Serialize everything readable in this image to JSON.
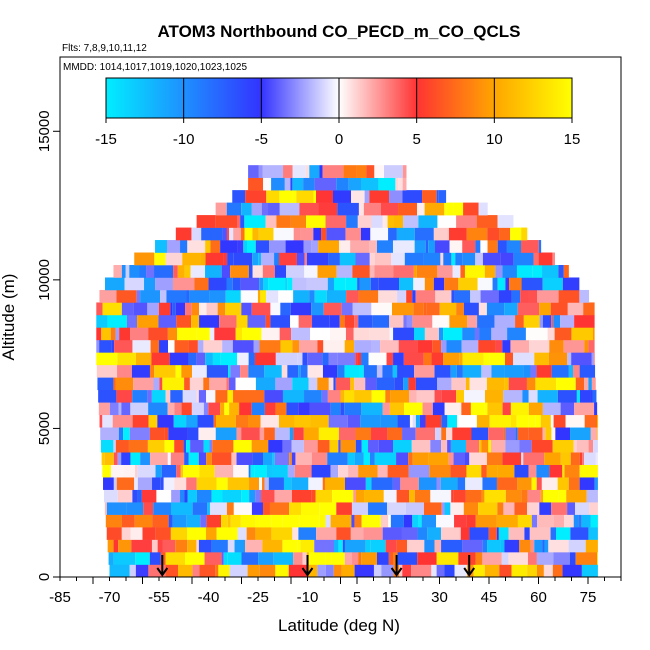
{
  "chart_data": {
    "type": "heatmap",
    "title": "ATOM3 Northbound CO_PECD_m_CO_QCLS",
    "subtitle_flights": "Flts: 7,8,9,10,11,12",
    "subtitle_dates": "MMDD: 1014,1017,1019,1020,1023,1025",
    "xlabel": "Latitude (deg N)",
    "ylabel": "Altitude (m)",
    "xlim": [
      -85,
      85
    ],
    "ylim": [
      0,
      17500
    ],
    "x_ticks": [
      "-85",
      "-70",
      "-55",
      "-40",
      "-25",
      "-10",
      "5",
      "15",
      "30",
      "45",
      "60",
      "75"
    ],
    "x_tick_values": [
      -85,
      -70,
      -55,
      -40,
      -25,
      -10,
      5,
      15,
      30,
      45,
      60,
      75
    ],
    "y_ticks": [
      "0",
      "5000",
      "10000",
      "15000"
    ],
    "y_tick_values": [
      0,
      5000,
      10000,
      15000
    ],
    "colorbar": {
      "ticks": [
        "-15",
        "-10",
        "-5",
        "0",
        "5",
        "10",
        "15"
      ],
      "tick_values": [
        -15,
        -10,
        -5,
        0,
        5,
        10,
        15
      ],
      "range": [
        -15,
        15
      ],
      "colors": [
        "#00eeff",
        "#1e90ff",
        "#3333ff",
        "#ffffff",
        "#ff3333",
        "#ffa500",
        "#ffff00"
      ]
    },
    "profile_arrows_lat": [
      -54,
      -10,
      17,
      39
    ],
    "data_extent": [
      {
        "alt": 13000,
        "lat_min": -28,
        "lat_max": 20
      },
      {
        "alt": 12000,
        "lat_min": -40,
        "lat_max": 50
      },
      {
        "alt": 11000,
        "lat_min": -55,
        "lat_max": 60
      },
      {
        "alt": 10000,
        "lat_min": -70,
        "lat_max": 70
      },
      {
        "alt": 9000,
        "lat_min": -74,
        "lat_max": 77
      },
      {
        "alt": 7000,
        "lat_min": -74,
        "lat_max": 77
      },
      {
        "alt": 5000,
        "lat_min": -73,
        "lat_max": 78
      },
      {
        "alt": 3000,
        "lat_min": -72,
        "lat_max": 78
      },
      {
        "alt": 0,
        "lat_min": -70,
        "lat_max": 78
      }
    ]
  }
}
